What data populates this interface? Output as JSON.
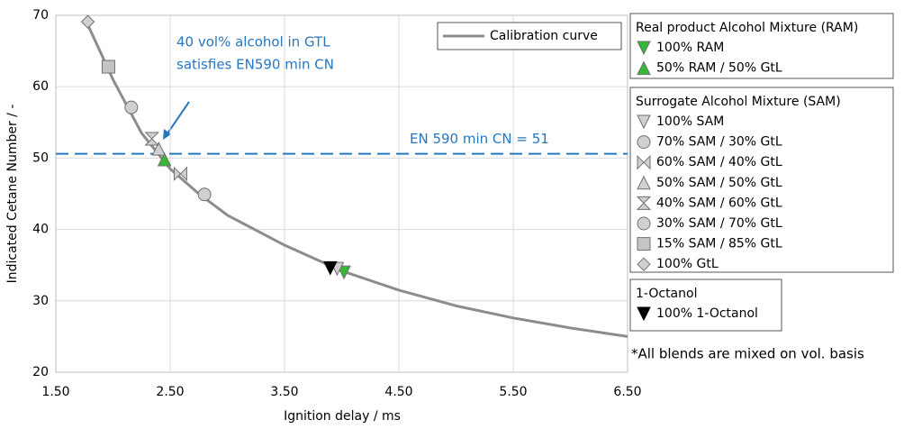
{
  "chart_data": {
    "type": "scatter",
    "x_label": "Ignition delay / ms",
    "y_label": "Indicated Cetane Number / -",
    "xlim": [
      1.5,
      6.5
    ],
    "ylim": [
      20,
      70
    ],
    "xticks": [
      {
        "value": 1.5,
        "label": "1.50"
      },
      {
        "value": 2.5,
        "label": "2.50"
      },
      {
        "value": 3.5,
        "label": "3.50"
      },
      {
        "value": 4.5,
        "label": "4.50"
      },
      {
        "value": 5.5,
        "label": "5.50"
      },
      {
        "value": 6.5,
        "label": "6.50"
      }
    ],
    "yticks": [
      20,
      30,
      40,
      50,
      60,
      70
    ],
    "grid": true,
    "curve": {
      "name": "Calibration curve",
      "color": "#8c8c8c",
      "x": [
        1.77,
        1.9,
        2.0,
        2.1,
        2.25,
        2.5,
        2.75,
        3.0,
        3.5,
        4.0,
        4.5,
        5.0,
        5.5,
        6.0,
        6.5
      ],
      "values": [
        69,
        64.5,
        61,
        58,
        53.5,
        48.5,
        45,
        42,
        37.8,
        34.2,
        31.5,
        29.3,
        27.6,
        26.2,
        25
      ]
    },
    "reference_line": {
      "value": 50.6,
      "label": "EN 590 min CN = 51",
      "color": "#2577c0"
    },
    "annotation": [
      "40 vol% alcohol in GTL",
      "satisfies EN590 min CN"
    ],
    "footnote": "*All blends are mixed on vol. basis",
    "legend_groups": [
      {
        "title": "Real product Alcohol Mixture (RAM)",
        "series": [
          {
            "name": "100% RAM",
            "marker": "triangle-down",
            "color": "#35b935",
            "x": [
              4.02
            ],
            "values": [
              34
            ]
          },
          {
            "name": "50% RAM / 50% GtL",
            "marker": "triangle-up",
            "color": "#35b935",
            "x": [
              2.45
            ],
            "values": [
              49.8
            ]
          }
        ]
      },
      {
        "title": "Surrogate Alcohol Mixture (SAM)",
        "series": [
          {
            "name": "100% SAM",
            "marker": "triangle-down",
            "color": "#d0d0d0",
            "x": [
              3.96
            ],
            "values": [
              34.5
            ]
          },
          {
            "name": "70% SAM / 30% GtL",
            "marker": "circle",
            "color": "#d0d0d0",
            "x": [
              2.8
            ],
            "values": [
              44.9
            ]
          },
          {
            "name": "60% SAM / 40% GtL",
            "marker": "bowtie",
            "color": "#d0d0d0",
            "x": [
              2.59
            ],
            "values": [
              47.8
            ]
          },
          {
            "name": "50% SAM / 50% GtL",
            "marker": "triangle-up",
            "color": "#d0d0d0",
            "x": [
              2.4
            ],
            "values": [
              51.3
            ]
          },
          {
            "name": "40% SAM / 60% GtL",
            "marker": "hourglass",
            "color": "#d0d0d0",
            "x": [
              2.34
            ],
            "values": [
              52.7
            ]
          },
          {
            "name": "30% SAM / 70% GtL",
            "marker": "circle",
            "color": "#d0d0d0",
            "x": [
              2.16
            ],
            "values": [
              57.1
            ]
          },
          {
            "name": "15% SAM / 85% GtL",
            "marker": "square",
            "color": "#c4c4c4",
            "x": [
              1.96
            ],
            "values": [
              62.8
            ]
          },
          {
            "name": "100% GtL",
            "marker": "diamond",
            "color": "#d0d0d0",
            "x": [
              1.78
            ],
            "values": [
              69.1
            ]
          }
        ]
      },
      {
        "title": "1-Octanol",
        "series": [
          {
            "name": "100% 1-Octanol",
            "marker": "triangle-down",
            "color": "#000000",
            "x": [
              3.9
            ],
            "values": [
              34.6
            ]
          }
        ]
      }
    ]
  }
}
